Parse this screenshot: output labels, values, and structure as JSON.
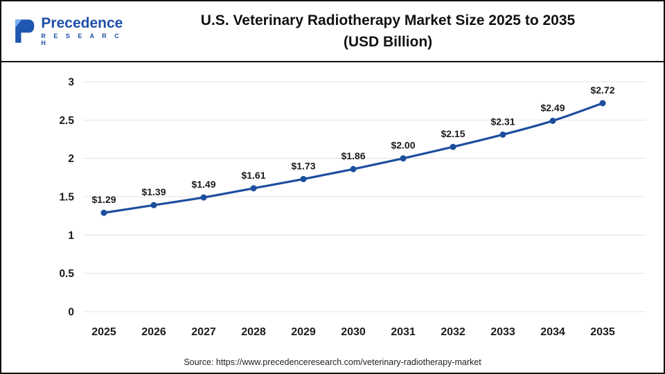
{
  "header": {
    "title_line1": "U.S. Veterinary Radiotherapy Market Size 2025 to 2035",
    "title_line2": "(USD Billion)",
    "logo": {
      "name": "Precedence",
      "subname": "R E S E A R C H"
    }
  },
  "chart_data": {
    "type": "line",
    "title": "U.S. Veterinary Radiotherapy Market Size 2025 to 2035 (USD Billion)",
    "categories": [
      "2025",
      "2026",
      "2027",
      "2028",
      "2029",
      "2030",
      "2031",
      "2032",
      "2033",
      "2034",
      "2035"
    ],
    "values": [
      1.29,
      1.39,
      1.49,
      1.61,
      1.73,
      1.86,
      2.0,
      2.15,
      2.31,
      2.49,
      2.72
    ],
    "point_labels": [
      "$1.29",
      "$1.39",
      "$1.49",
      "$1.61",
      "$1.73",
      "$1.86",
      "$2.00",
      "$2.15",
      "$2.31",
      "$2.49",
      "$2.72"
    ],
    "ylim": [
      0,
      3
    ],
    "yticks": [
      0,
      0.5,
      1,
      1.5,
      2,
      2.5,
      3
    ],
    "grid": true,
    "legend": "none",
    "line_color": "#1d4e9e",
    "marker_color": "#1d4e9e",
    "grid_color": "#e3e3e3",
    "label_color": "#1a1a1a"
  },
  "footer": {
    "source": "Source: https://www.precedenceresearch.com/veterinary-radiotherapy-market"
  }
}
